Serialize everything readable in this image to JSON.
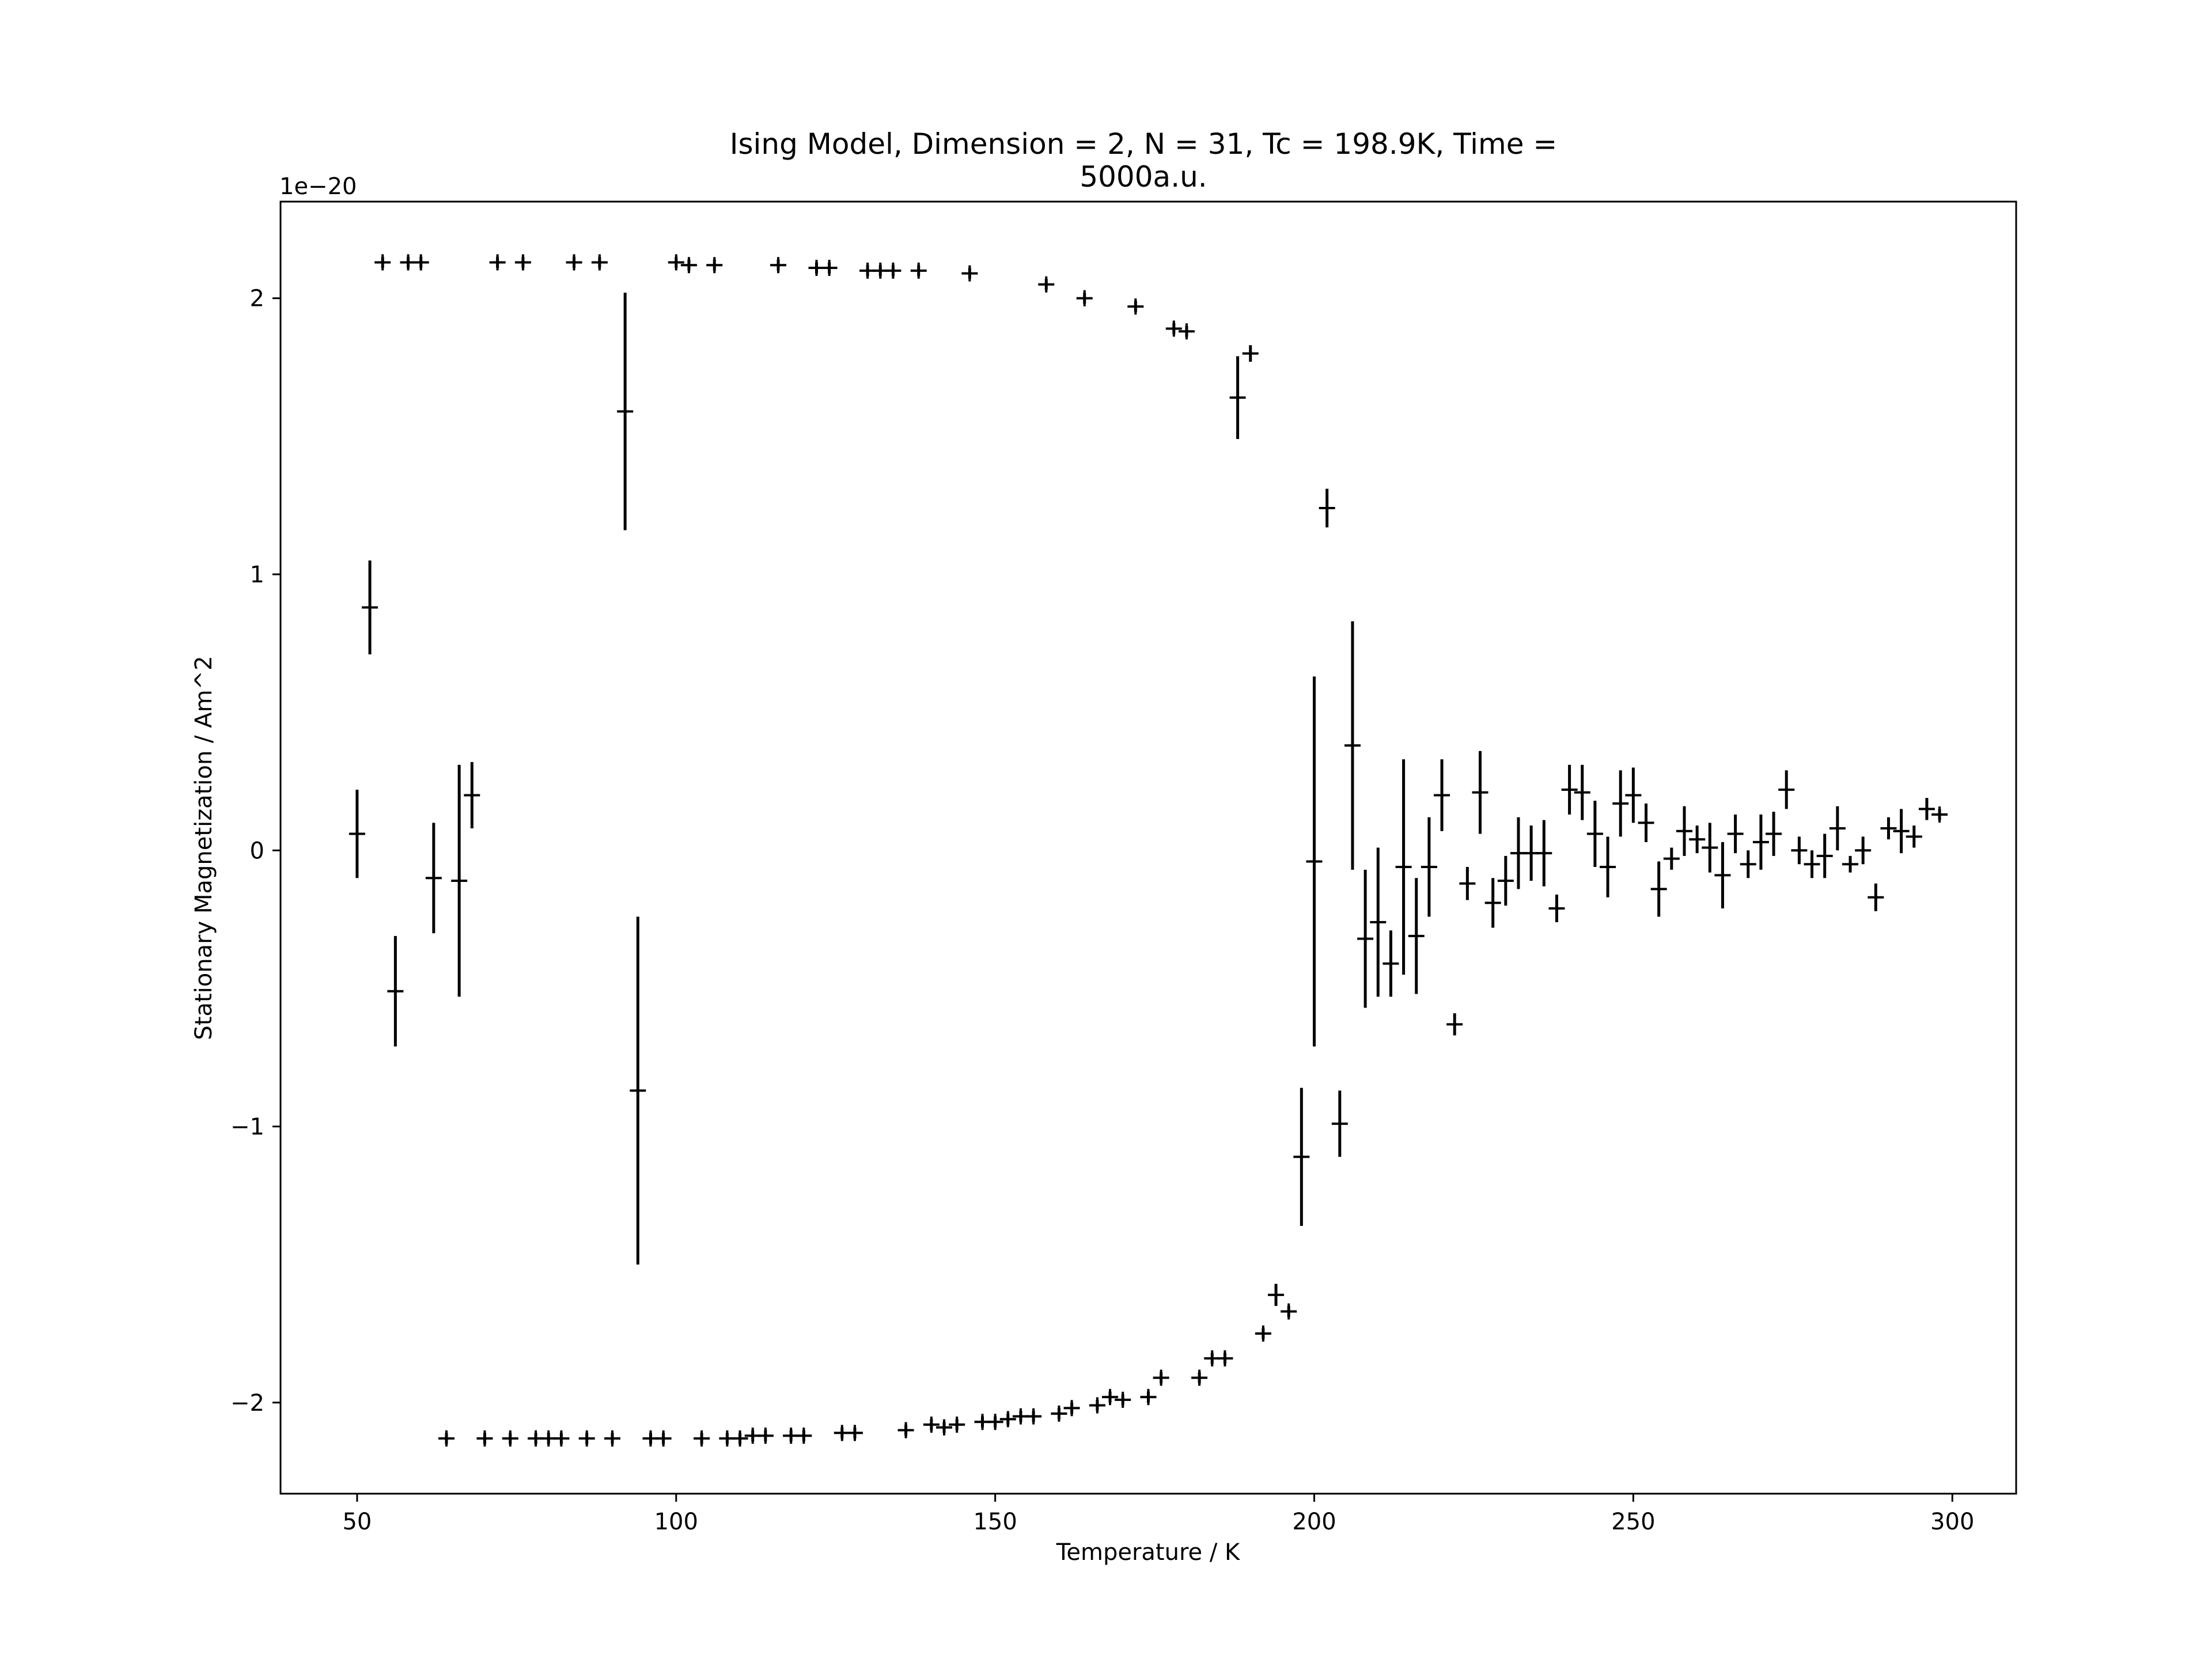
{
  "chart_data": {
    "type": "scatter",
    "title_line1": "Ising Model, Dimension = 2, N = 31, Tc = 198.9K, Time =",
    "title_line2": "5000a.u.",
    "xlabel": "Temperature / K",
    "ylabel": "Stationary Magnetization / Am^2",
    "y_offset_label": "1e−20",
    "xlim": [
      38,
      310
    ],
    "ylim": [
      -2.33,
      2.35
    ],
    "x_ticks": [
      50,
      100,
      150,
      200,
      250,
      300
    ],
    "y_ticks": [
      -2,
      -1,
      0,
      1,
      2
    ],
    "y_tick_labels": [
      "−2",
      "−1",
      "0",
      "1",
      "2"
    ],
    "grid": false,
    "marker": "+",
    "color": "#000000",
    "series": [
      {
        "points": [
          [
            50,
            0.06,
            0.16
          ],
          [
            52,
            0.88,
            0.17
          ],
          [
            54,
            2.13,
            0.02
          ],
          [
            56,
            -0.51,
            0.2
          ],
          [
            58,
            2.13,
            0.02
          ],
          [
            60,
            2.13,
            0.02
          ],
          [
            62,
            -0.1,
            0.2
          ],
          [
            64,
            -2.13,
            0.02
          ],
          [
            66,
            -0.11,
            0.42
          ],
          [
            68,
            0.2,
            0.12
          ],
          [
            70,
            -2.13,
            0.02
          ],
          [
            72,
            2.13,
            0.02
          ],
          [
            74,
            -2.13,
            0.02
          ],
          [
            76,
            2.13,
            0.02
          ],
          [
            78,
            -2.13,
            0.02
          ],
          [
            80,
            -2.13,
            0.02
          ],
          [
            82,
            -2.13,
            0.02
          ],
          [
            84,
            2.13,
            0.02
          ],
          [
            86,
            -2.13,
            0.02
          ],
          [
            88,
            2.13,
            0.02
          ],
          [
            90,
            -2.13,
            0.02
          ],
          [
            92,
            1.59,
            0.43
          ],
          [
            94,
            -0.87,
            0.63
          ],
          [
            96,
            -2.13,
            0.02
          ],
          [
            98,
            -2.13,
            0.02
          ],
          [
            100,
            2.13,
            0.02
          ],
          [
            102,
            2.12,
            0.02
          ],
          [
            104,
            -2.13,
            0.02
          ],
          [
            106,
            2.12,
            0.02
          ],
          [
            108,
            -2.13,
            0.02
          ],
          [
            110,
            -2.13,
            0.02
          ],
          [
            112,
            -2.12,
            0.02
          ],
          [
            114,
            -2.12,
            0.02
          ],
          [
            116,
            2.12,
            0.02
          ],
          [
            118,
            -2.12,
            0.02
          ],
          [
            120,
            -2.12,
            0.02
          ],
          [
            122,
            2.11,
            0.02
          ],
          [
            124,
            2.11,
            0.02
          ],
          [
            126,
            -2.11,
            0.02
          ],
          [
            128,
            -2.11,
            0.02
          ],
          [
            130,
            2.1,
            0.02
          ],
          [
            132,
            2.1,
            0.02
          ],
          [
            134,
            2.1,
            0.02
          ],
          [
            136,
            -2.1,
            0.02
          ],
          [
            138,
            2.1,
            0.02
          ],
          [
            140,
            -2.08,
            0.02
          ],
          [
            142,
            -2.09,
            0.02
          ],
          [
            144,
            -2.08,
            0.02
          ],
          [
            146,
            2.09,
            0.02
          ],
          [
            148,
            -2.07,
            0.02
          ],
          [
            150,
            -2.07,
            0.02
          ],
          [
            152,
            -2.06,
            0.02
          ],
          [
            154,
            -2.05,
            0.02
          ],
          [
            156,
            -2.05,
            0.02
          ],
          [
            158,
            2.05,
            0.02
          ],
          [
            160,
            -2.04,
            0.02
          ],
          [
            162,
            -2.02,
            0.02
          ],
          [
            164,
            2.0,
            0.02
          ],
          [
            166,
            -2.01,
            0.02
          ],
          [
            168,
            -1.98,
            0.02
          ],
          [
            170,
            -1.99,
            0.02
          ],
          [
            172,
            1.97,
            0.02
          ],
          [
            174,
            -1.98,
            0.02
          ],
          [
            176,
            -1.91,
            0.02
          ],
          [
            178,
            1.89,
            0.02
          ],
          [
            180,
            1.88,
            0.02
          ],
          [
            182,
            -1.91,
            0.02
          ],
          [
            184,
            -1.84,
            0.02
          ],
          [
            186,
            -1.84,
            0.02
          ],
          [
            188,
            1.64,
            0.15
          ],
          [
            190,
            1.8,
            0.03
          ],
          [
            192,
            -1.75,
            0.02
          ],
          [
            194,
            -1.61,
            0.04
          ],
          [
            196,
            -1.67,
            0.02
          ],
          [
            198,
            -1.11,
            0.25
          ],
          [
            200,
            -0.04,
            0.67
          ],
          [
            202,
            1.24,
            0.07
          ],
          [
            204,
            -0.99,
            0.12
          ],
          [
            206,
            0.38,
            0.45
          ],
          [
            208,
            -0.32,
            0.25
          ],
          [
            210,
            -0.26,
            0.27
          ],
          [
            212,
            -0.41,
            0.12
          ],
          [
            214,
            -0.06,
            0.39
          ],
          [
            216,
            -0.31,
            0.21
          ],
          [
            218,
            -0.06,
            0.18
          ],
          [
            220,
            0.2,
            0.13
          ],
          [
            222,
            -0.63,
            0.04
          ],
          [
            224,
            -0.12,
            0.06
          ],
          [
            226,
            0.21,
            0.15
          ],
          [
            228,
            -0.19,
            0.09
          ],
          [
            230,
            -0.11,
            0.09
          ],
          [
            232,
            -0.01,
            0.13
          ],
          [
            234,
            -0.01,
            0.1
          ],
          [
            236,
            -0.01,
            0.12
          ],
          [
            238,
            -0.21,
            0.05
          ],
          [
            240,
            0.22,
            0.09
          ],
          [
            242,
            0.21,
            0.1
          ],
          [
            244,
            0.06,
            0.12
          ],
          [
            246,
            -0.06,
            0.11
          ],
          [
            248,
            0.17,
            0.12
          ],
          [
            250,
            0.2,
            0.1
          ],
          [
            252,
            0.1,
            0.07
          ],
          [
            254,
            -0.14,
            0.1
          ],
          [
            256,
            -0.03,
            0.04
          ],
          [
            258,
            0.07,
            0.09
          ],
          [
            260,
            0.04,
            0.05
          ],
          [
            262,
            0.01,
            0.09
          ],
          [
            264,
            -0.09,
            0.12
          ],
          [
            266,
            0.06,
            0.07
          ],
          [
            268,
            -0.05,
            0.05
          ],
          [
            270,
            0.03,
            0.1
          ],
          [
            272,
            0.06,
            0.08
          ],
          [
            274,
            0.22,
            0.07
          ],
          [
            276,
            0.0,
            0.05
          ],
          [
            278,
            -0.05,
            0.05
          ],
          [
            280,
            -0.02,
            0.08
          ],
          [
            282,
            0.08,
            0.08
          ],
          [
            284,
            -0.05,
            0.03
          ],
          [
            286,
            0.0,
            0.05
          ],
          [
            288,
            -0.17,
            0.05
          ],
          [
            290,
            0.08,
            0.04
          ],
          [
            292,
            0.07,
            0.08
          ],
          [
            294,
            0.05,
            0.04
          ],
          [
            296,
            0.15,
            0.04
          ],
          [
            298,
            0.13,
            0.02
          ]
        ]
      }
    ]
  }
}
